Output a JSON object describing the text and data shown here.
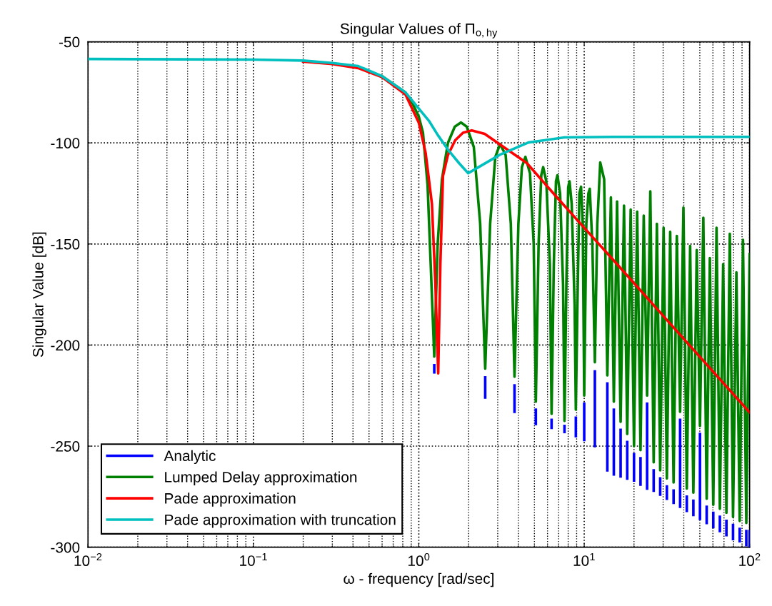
{
  "chart_data": {
    "type": "line",
    "title": "Singular Values of Π$_{o,hy}$",
    "xlabel": "ω - frequency [rad/sec]",
    "ylabel": "Singular Value [dB]",
    "log": "x",
    "grid": true,
    "legend": "bottom left",
    "line_style": "solid",
    "xlim": [
      0.01,
      100
    ],
    "ylim": [
      -300,
      -50
    ],
    "xticks": [
      {
        "value": 0.01,
        "label": "10$^{−2}$"
      },
      {
        "value": 0.1,
        "label": "10$^{−1}$"
      },
      {
        "value": 1,
        "label": "10$^{0}$"
      },
      {
        "value": 10,
        "label": "10$^{1}$"
      },
      {
        "value": 100,
        "label": "10$^{2}$"
      }
    ],
    "yticks": [
      -300,
      -250,
      -200,
      -150,
      -100,
      -50
    ],
    "series": [
      {
        "name": "Analytic",
        "color": "#0000ff",
        "x": [
          1.24,
          1.24,
          null,
          2.52,
          2.52,
          null,
          3.79,
          3.79,
          null,
          5.1,
          5.1,
          null,
          6.35,
          6.35,
          null,
          7.6,
          7.6,
          null,
          8.9,
          8.9,
          null,
          10.0,
          10.0,
          null,
          11.6,
          11.6,
          null,
          13.8,
          13.8,
          null,
          15.1,
          15.1,
          null,
          16.6,
          16.6,
          null,
          18.2,
          18.2,
          null,
          20.0,
          20.0,
          null,
          21.9,
          21.9,
          null,
          24.0,
          24.0,
          null,
          26.3,
          26.3,
          null,
          28.8,
          28.8,
          null,
          31.6,
          31.6,
          null,
          34.7,
          34.7,
          null,
          38.0,
          38.0,
          null,
          41.7,
          41.7,
          null,
          45.7,
          45.7,
          null,
          50.1,
          50.1,
          null,
          55.0,
          55.0,
          null,
          60.3,
          60.3,
          null,
          66.1,
          66.1,
          null,
          72.4,
          72.4,
          null,
          79.4,
          79.4,
          null,
          87.1,
          87.1,
          null,
          95.5,
          95.5,
          null,
          100,
          100
        ],
        "values": [
          -210,
          -213.5,
          null,
          -216,
          -226,
          null,
          -220,
          -233,
          null,
          -232,
          -239,
          null,
          -237,
          -241,
          null,
          -240,
          -243,
          null,
          -236,
          -245,
          null,
          -229,
          -247,
          null,
          -213,
          -250,
          null,
          -219,
          -262,
          null,
          -232,
          -264,
          null,
          -242,
          -265,
          null,
          -248,
          -266,
          null,
          -254,
          -267,
          null,
          -256,
          -269,
          null,
          -229,
          -271,
          null,
          -262,
          -272,
          null,
          -266,
          -274,
          null,
          -270,
          -276,
          null,
          -272,
          -278,
          null,
          -237,
          -280,
          null,
          -275,
          -282,
          null,
          -277,
          -284,
          null,
          -244,
          -286,
          null,
          -280,
          -288,
          null,
          -283,
          -290,
          null,
          -285,
          -292,
          null,
          -287,
          -294,
          null,
          -289,
          -296,
          null,
          -291,
          -297,
          null,
          -292,
          -299,
          null,
          -292,
          -300
        ]
      },
      {
        "name": "Lumped Delay approximation",
        "color": "#008000",
        "x": [
          0.6,
          0.83,
          0.91,
          1.0,
          1.06,
          1.13,
          1.18,
          1.24,
          1.3,
          1.38,
          1.5,
          1.65,
          1.8,
          1.95,
          2.15,
          2.35,
          2.52,
          2.7,
          2.9,
          3.1,
          3.35,
          3.6,
          3.79,
          4.0,
          4.2,
          4.41,
          4.7,
          4.95,
          5.1,
          5.3,
          5.5,
          5.65,
          5.9,
          6.2,
          6.35,
          6.55,
          6.75,
          6.89,
          7.15,
          7.45,
          7.6,
          7.8,
          8.0,
          8.15,
          8.4,
          8.75,
          8.9,
          9.1,
          9.35,
          9.57,
          9.8,
          10.0,
          10.3,
          10.6,
          10.8,
          11.2,
          11.6,
          12.0,
          12.5,
          13.2,
          13.8,
          14.5,
          15.1,
          15.8,
          16.6,
          17.4,
          18.2,
          19.1,
          20.0,
          20.9,
          21.9,
          22.9,
          24.0,
          25.1,
          26.3,
          27.5,
          28.8,
          30.2,
          31.6,
          33.1,
          34.7,
          36.3,
          38.0,
          39.8,
          41.7,
          43.7,
          45.7,
          47.9,
          50.1,
          52.5,
          55.0,
          57.5,
          60.3,
          63.1,
          66.1,
          69.2,
          72.4,
          75.9,
          79.4,
          83.2,
          87.1,
          91.2,
          95.5,
          100
        ],
        "values": [
          -67,
          -75,
          -80,
          -87,
          -95,
          -121,
          -160,
          -205.7,
          -150,
          -118,
          -100,
          -92,
          -89.9,
          -92,
          -102,
          -140,
          -211.7,
          -140,
          -107,
          -100.5,
          -106,
          -140,
          -215.6,
          -140,
          -112,
          -106.9,
          -115,
          -150,
          -228,
          -150,
          -116,
          -112,
          -119,
          -160,
          -234,
          -160,
          -119,
          -116,
          -125,
          -170,
          -237.5,
          -170,
          -122,
          -119,
          -130,
          -180,
          -232,
          -180,
          -125,
          -121.7,
          -140,
          -225,
          -140,
          -125,
          -122.7,
          -150,
          -208.5,
          -140,
          -109.7,
          -118,
          -215,
          -127,
          -228,
          -129,
          -238,
          -131,
          -244,
          -133,
          -250,
          -134,
          -252,
          -136,
          -225,
          -124,
          -258,
          -140,
          -262,
          -142,
          -266,
          -144,
          -268,
          -146,
          -233,
          -132,
          -271,
          -151,
          -273,
          -153,
          -240,
          -137,
          -276,
          -157,
          -279,
          -142,
          -281,
          -160,
          -283,
          -145,
          -285,
          -164,
          -287,
          -148,
          -288,
          -155
        ]
      },
      {
        "name": "Pade approximation",
        "color": "#ff0000",
        "x": [
          null,
          null,
          0.2,
          0.3,
          0.43,
          0.6,
          0.83,
          1.0,
          1.1,
          1.2,
          1.26,
          1.31,
          1.35,
          1.4,
          1.5,
          1.66,
          1.85,
          2.09,
          2.5,
          3.33,
          4.5,
          6.9,
          10,
          15.4,
          30,
          50,
          100
        ],
        "values": [
          null,
          null,
          -59.8,
          -61,
          -63,
          -67.5,
          -76,
          -90,
          -105,
          -130,
          -170,
          -214,
          -160,
          -116.4,
          -106,
          -98.7,
          -95,
          -93.8,
          -95.5,
          -102.6,
          -110,
          -127.3,
          -142,
          -159,
          -185.5,
          -205.8,
          -233.3
        ]
      },
      {
        "name": "Pade approximation with truncation",
        "color": "#00bfbf",
        "x": [
          0.01,
          0.1,
          0.2,
          0.3,
          0.43,
          0.6,
          0.83,
          1.0,
          1.15,
          1.3,
          1.5,
          1.75,
          1.99,
          2.3,
          3.1,
          4.6,
          7.6,
          15,
          100
        ],
        "values": [
          -58.5,
          -58.8,
          -59.3,
          -60.5,
          -62,
          -67,
          -75,
          -83,
          -89,
          -96,
          -103.3,
          -110,
          -115,
          -112,
          -105.8,
          -99.8,
          -97.3,
          -97,
          -97
        ]
      }
    ]
  }
}
